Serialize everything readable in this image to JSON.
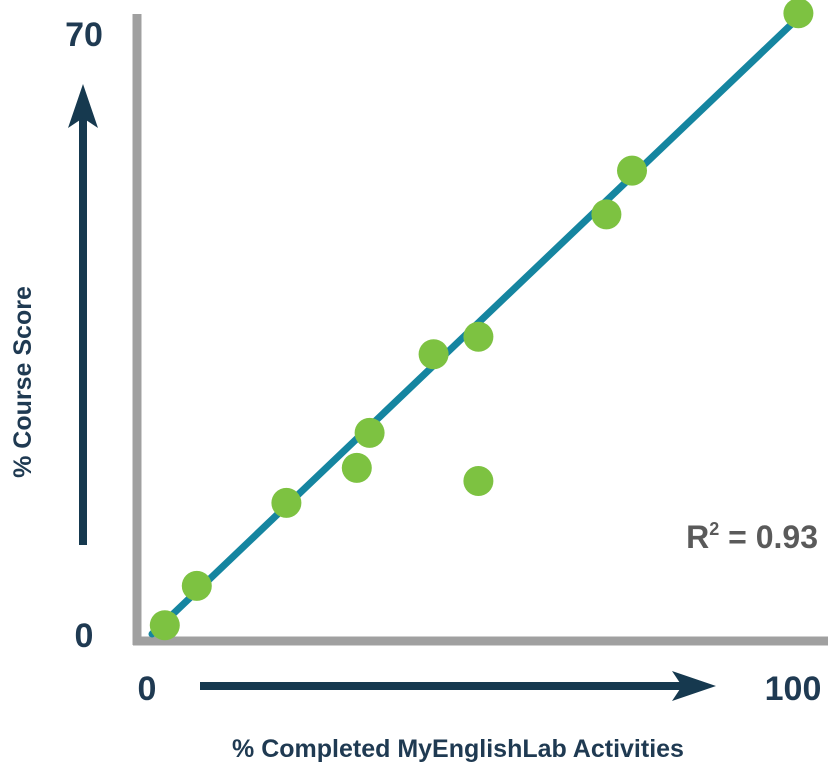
{
  "chart_data": {
    "type": "scatter",
    "xlabel": "% Completed MyEnglishLab Activities",
    "ylabel": "% Course Score",
    "x_ticks": [
      "0",
      "100"
    ],
    "y_ticks": [
      "0",
      "70"
    ],
    "xlim": [
      0,
      100
    ],
    "ylim": [
      0,
      70
    ],
    "points": [
      {
        "x": 2,
        "y": 1
      },
      {
        "x": 7,
        "y": 5.5
      },
      {
        "x": 21,
        "y": 15
      },
      {
        "x": 32,
        "y": 19
      },
      {
        "x": 34,
        "y": 23
      },
      {
        "x": 44,
        "y": 32
      },
      {
        "x": 51,
        "y": 34
      },
      {
        "x": 51,
        "y": 17.5
      },
      {
        "x": 71,
        "y": 48
      },
      {
        "x": 75,
        "y": 53
      },
      {
        "x": 101,
        "y": 71
      }
    ],
    "trendline": {
      "x": [
        0,
        101
      ],
      "y": [
        0,
        70.5
      ]
    },
    "annotation": {
      "base": "R",
      "superscript": "2",
      "rest": " = 0.93"
    },
    "grid": false,
    "legend": "none"
  },
  "colors": {
    "axis": "#a0a0a0",
    "arrow": "#16394f",
    "trendline": "#1585a0",
    "points": "#7dc241",
    "text": "#1f3a52",
    "annotation": "#5a5a5a"
  }
}
